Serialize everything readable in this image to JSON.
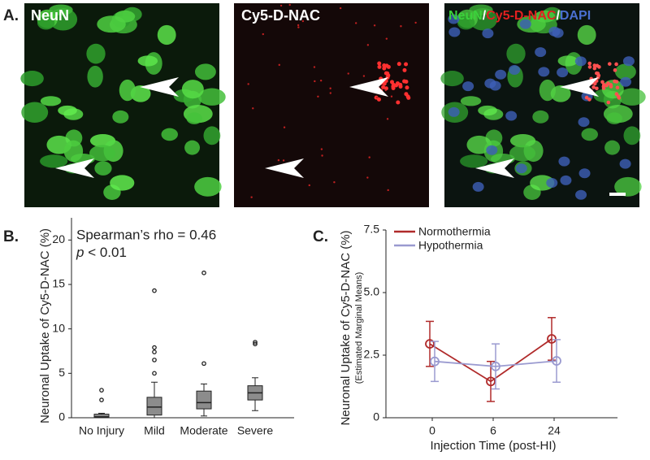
{
  "panel_a": {
    "label": "A.",
    "titles": [
      "NeuN",
      "Cy5-D-NAC"
    ],
    "merge_title": [
      {
        "text": "NeuN",
        "color": "#3bd13b"
      },
      {
        "text": "/",
        "color": "#ffffff"
      },
      {
        "text": "Cy5-D-NAC",
        "color": "#e02020"
      },
      {
        "text": "/",
        "color": "#ffffff"
      },
      {
        "text": "DAPI",
        "color": "#4a6fd0"
      }
    ]
  },
  "chart_data": [
    {
      "type": "box",
      "panel_label": "B.",
      "y_label": "Neuronal Uptake of Cy5-D-NAC (%)",
      "annotation": "Spearman’s rho = 0.46",
      "p_annotation": [
        "p",
        " < 0.01"
      ],
      "categories": [
        "No Injury",
        "Mild",
        "Moderate",
        "Severe"
      ],
      "boxes": [
        {
          "whislo": 0,
          "q1": 0,
          "med": 0.1,
          "q3": 0.4,
          "whishi": 0.5,
          "fliers": [
            2.0,
            3.1
          ]
        },
        {
          "whislo": 0,
          "q1": 0.3,
          "med": 1.2,
          "q3": 2.3,
          "whishi": 4.0,
          "fliers": [
            5.0,
            6.5,
            7.4,
            7.9,
            14.3
          ]
        },
        {
          "whislo": 0.2,
          "q1": 1.0,
          "med": 1.7,
          "q3": 3.0,
          "whishi": 3.8,
          "fliers": [
            6.1,
            16.3
          ]
        },
        {
          "whislo": 0.8,
          "q1": 2.0,
          "med": 2.8,
          "q3": 3.6,
          "whishi": 4.5,
          "fliers": [
            8.3,
            8.5
          ]
        }
      ],
      "color": "#8c8c8c",
      "ylim": [
        0,
        22.5
      ],
      "yticks": [
        0,
        5,
        10,
        15,
        20
      ]
    },
    {
      "type": "line",
      "panel_label": "C.",
      "y_label": "Neuronal Uptake of Cy5-D-NAC (%)",
      "y_sublabel": "(Estimated Marginal Means)",
      "x_label": "Injection Time  (post-HI)",
      "categories": [
        "0",
        "6",
        "24"
      ],
      "series": [
        {
          "name": "Normothermia",
          "color": "#b02a2a",
          "values": [
            2.95,
            1.45,
            3.15
          ],
          "errors": [
            0.9,
            0.8,
            0.85
          ]
        },
        {
          "name": "Hypothermia",
          "color": "#9a9ad0",
          "values": [
            2.25,
            2.05,
            2.27
          ],
          "errors": [
            0.8,
            0.9,
            0.85
          ]
        }
      ],
      "ylim": [
        0,
        7.5
      ],
      "yticks": [
        0,
        2.5,
        {
          "value": 5,
          "label": "5.0"
        },
        7.5
      ],
      "legend": "upper left"
    }
  ]
}
